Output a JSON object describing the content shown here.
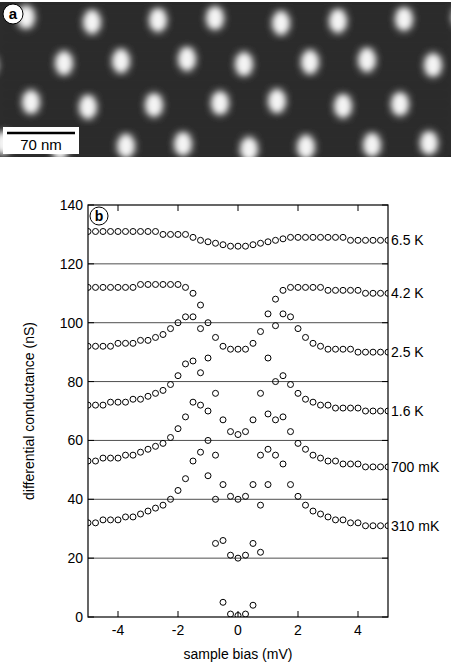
{
  "image_panel": {
    "label": "a",
    "scale_bar_label": "70 nm"
  },
  "chart_data": {
    "type": "scatter",
    "panel_label": "b",
    "x_label": "sample bias (mV)",
    "y_label": "differential conductance (nS)",
    "xlim": [
      -5,
      5
    ],
    "xticks": [
      -4,
      -2,
      0,
      2,
      4
    ],
    "ylim": [
      0,
      140
    ],
    "yticks": [
      0,
      20,
      40,
      60,
      80,
      100,
      120,
      140
    ],
    "grid": true,
    "marker": "open_circle",
    "x": [
      -5,
      -4.75,
      -4.5,
      -4.25,
      -4,
      -3.75,
      -3.5,
      -3.25,
      -3,
      -2.75,
      -2.5,
      -2.25,
      -2,
      -1.75,
      -1.5,
      -1.25,
      -1,
      -0.75,
      -0.5,
      -0.25,
      0,
      0.25,
      0.5,
      0.75,
      1,
      1.25,
      1.5,
      1.75,
      2,
      2.25,
      2.5,
      2.75,
      3,
      3.25,
      3.5,
      3.75,
      4,
      4.25,
      4.5,
      4.75,
      5
    ],
    "series": [
      {
        "name": "6.5 K",
        "color": "#000000",
        "values": [
          131,
          131,
          131,
          131,
          131,
          131,
          131,
          131,
          131,
          131,
          130,
          130,
          130,
          130,
          129,
          128,
          127.5,
          127,
          126.5,
          126,
          126,
          126,
          126.5,
          127,
          127.5,
          128,
          128.5,
          129,
          129,
          129,
          129,
          129,
          129,
          129,
          129,
          128,
          128,
          128,
          128,
          128,
          128
        ]
      },
      {
        "name": "4.2 K",
        "color": "#000000",
        "values": [
          112,
          112,
          112,
          112,
          112,
          112,
          112,
          113,
          113,
          113,
          113,
          113,
          113,
          112,
          110,
          106,
          100,
          95,
          92,
          91,
          91,
          91,
          93,
          97,
          103,
          108,
          111,
          112,
          112,
          112,
          112,
          112,
          111,
          111,
          111,
          111,
          111,
          110,
          110,
          110,
          110
        ]
      },
      {
        "name": "2.5 K",
        "color": "#000000",
        "values": [
          92,
          92,
          92,
          92,
          93,
          93,
          93,
          94,
          94,
          95,
          96,
          98,
          100,
          102,
          102,
          98,
          88,
          76,
          67,
          63,
          62,
          63,
          67,
          76,
          88,
          99,
          103,
          102,
          98,
          95,
          93,
          92,
          91,
          91,
          91,
          91,
          90,
          90,
          90,
          90,
          90
        ]
      },
      {
        "name": "1.6 K",
        "color": "#000000",
        "values": [
          72,
          72,
          72,
          73,
          73,
          73,
          74,
          74,
          75,
          76,
          77,
          79,
          82,
          86,
          87,
          83,
          70,
          55,
          45,
          41,
          40,
          41,
          45,
          55,
          69,
          80,
          82,
          79,
          76,
          74,
          73,
          72,
          72,
          71,
          71,
          71,
          71,
          70,
          70,
          70,
          70
        ]
      },
      {
        "name": "700 mK",
        "color": "#000000",
        "values": [
          53,
          53,
          54,
          54,
          54,
          55,
          55,
          56,
          57,
          58,
          59,
          61,
          64,
          68,
          73,
          72,
          60,
          40,
          26,
          21,
          20,
          21,
          25,
          38,
          57,
          67,
          68,
          63,
          59,
          57,
          55,
          54,
          53,
          53,
          52,
          52,
          52,
          51,
          51,
          51,
          51
        ]
      },
      {
        "name": "310 mK",
        "color": "#000000",
        "values": [
          32,
          32,
          33,
          33,
          33,
          34,
          34,
          35,
          36,
          37,
          38,
          40,
          43,
          47,
          53,
          56,
          48,
          25,
          5,
          1,
          0.5,
          1,
          4,
          22,
          45,
          55,
          52,
          45,
          41,
          38,
          36,
          35,
          34,
          33,
          33,
          32,
          32,
          31,
          31,
          31,
          31
        ]
      }
    ]
  }
}
